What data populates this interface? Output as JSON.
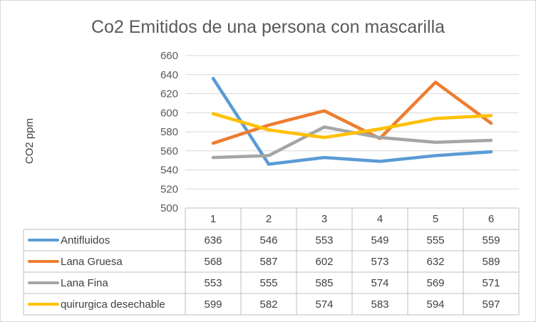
{
  "chart_data": {
    "type": "line",
    "title": "Co2 Emitidos de una persona con mascarilla",
    "ylabel": "CO2 ppm",
    "xlabel": "",
    "categories": [
      "1",
      "2",
      "3",
      "4",
      "5",
      "6"
    ],
    "ylim": [
      500,
      660
    ],
    "yticks": [
      500,
      520,
      540,
      560,
      580,
      600,
      620,
      640,
      660
    ],
    "grid": true,
    "legend": "data-table",
    "series": [
      {
        "name": "Antifluidos",
        "color": "#5b9bd5",
        "values": [
          636,
          546,
          553,
          549,
          555,
          559
        ]
      },
      {
        "name": "Lana Gruesa",
        "color": "#ed7d31",
        "values": [
          568,
          587,
          602,
          573,
          632,
          589
        ]
      },
      {
        "name": "Lana Fina",
        "color": "#a5a5a5",
        "values": [
          553,
          555,
          585,
          574,
          569,
          571
        ]
      },
      {
        "name": "quirurgica desechable",
        "color": "#ffc000",
        "values": [
          599,
          582,
          574,
          583,
          594,
          597
        ]
      }
    ]
  }
}
